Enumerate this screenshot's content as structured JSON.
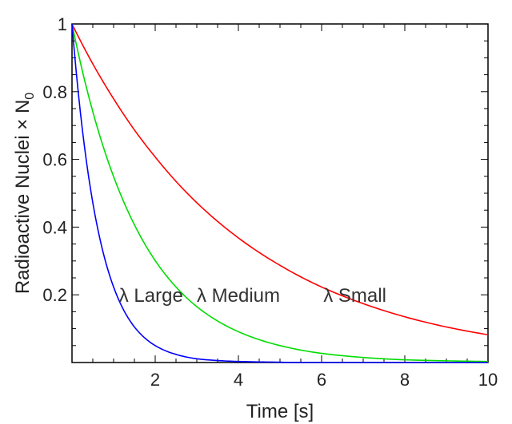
{
  "chart_data": {
    "type": "line",
    "title": "",
    "xlabel": "Time [s]",
    "ylabel": "Radioactive Nuclei × N",
    "ylabel_subscript": "0",
    "xlim": [
      0,
      10
    ],
    "ylim": [
      0,
      1
    ],
    "x_ticks": [
      2,
      4,
      6,
      8,
      10
    ],
    "x_tick_labels": [
      "2",
      "4",
      "6",
      "8",
      "10"
    ],
    "y_ticks": [
      0.2,
      0.4,
      0.6,
      0.8,
      1
    ],
    "y_tick_labels": [
      "0.2",
      "0.4",
      "0.6",
      "0.8",
      "1"
    ],
    "grid": false,
    "legend": "none",
    "x": [
      0,
      0.5,
      1,
      1.5,
      2,
      2.5,
      3,
      4,
      5,
      6,
      7,
      8,
      9,
      10
    ],
    "series": [
      {
        "color": "#ff0000",
        "values": [
          1.0,
          0.882,
          0.779,
          0.687,
          0.607,
          0.535,
          0.472,
          0.368,
          0.287,
          0.223,
          0.174,
          0.135,
          0.105,
          0.082
        ]
      },
      {
        "color": "#00dd00",
        "values": [
          1.0,
          0.741,
          0.549,
          0.407,
          0.301,
          0.223,
          0.165,
          0.091,
          0.05,
          0.027,
          0.015,
          0.008,
          0.005,
          0.003
        ]
      },
      {
        "color": "#0000ff",
        "values": [
          1.0,
          0.472,
          0.223,
          0.105,
          0.05,
          0.024,
          0.011,
          0.003,
          0.001,
          0.0,
          0.0,
          0.0,
          0.0,
          0.0
        ]
      }
    ],
    "annotations": [
      {
        "text": "λ Large",
        "x": 1.9,
        "y": 0.2
      },
      {
        "text": "λ Medium",
        "x": 4.0,
        "y": 0.2
      },
      {
        "text": "λ Small",
        "x": 6.8,
        "y": 0.2
      }
    ]
  }
}
